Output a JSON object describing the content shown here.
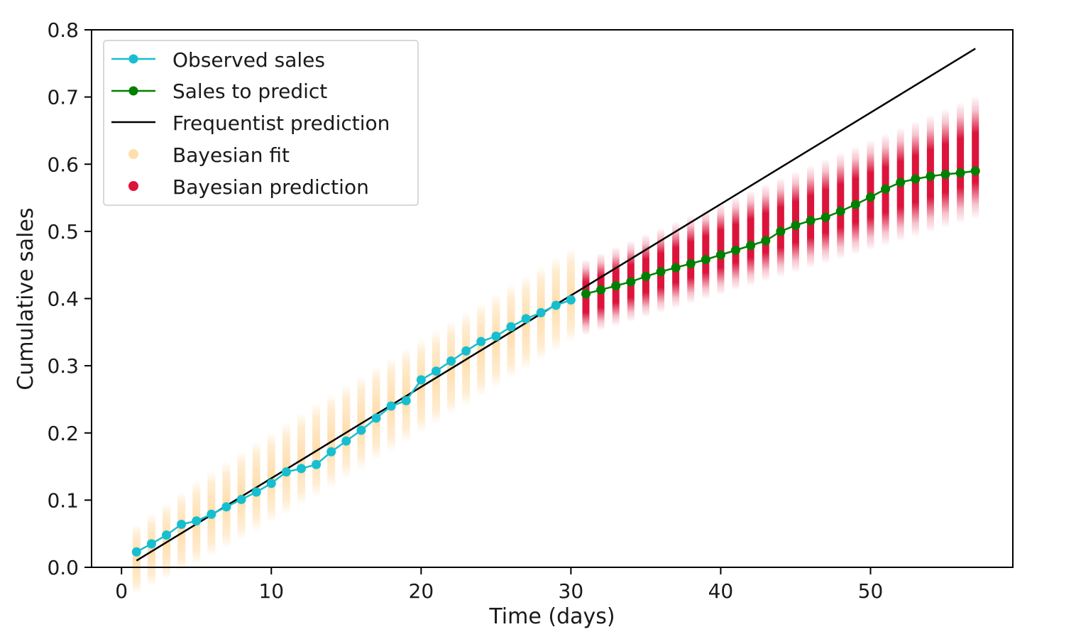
{
  "chart_data": {
    "type": "line",
    "title": "",
    "xlabel": "Time (days)",
    "ylabel": "Cumulative sales",
    "xlim": [
      -2,
      59.5
    ],
    "ylim": [
      0.0,
      0.8
    ],
    "x_ticks": [
      0,
      10,
      20,
      30,
      40,
      50
    ],
    "x_tick_labels": [
      "0",
      "10",
      "20",
      "30",
      "40",
      "50"
    ],
    "y_ticks": [
      0.0,
      0.1,
      0.2,
      0.3,
      0.4,
      0.5,
      0.6,
      0.7,
      0.8
    ],
    "y_tick_labels": [
      "0.0",
      "0.1",
      "0.2",
      "0.3",
      "0.4",
      "0.5",
      "0.6",
      "0.7",
      "0.8"
    ],
    "grid": false,
    "legend_position": "top-left",
    "colors": {
      "observed": "#17becf",
      "to_predict": "#008000",
      "frequentist": "#000000",
      "bayes_fit": "#ffdead",
      "bayes_pred": "#dc143c"
    },
    "series": [
      {
        "name": "Observed sales",
        "kind": "line-marker",
        "x": [
          1,
          2,
          3,
          4,
          5,
          6,
          7,
          8,
          9,
          10,
          11,
          12,
          13,
          14,
          15,
          16,
          17,
          18,
          19,
          20,
          21,
          22,
          23,
          24,
          25,
          26,
          27,
          28,
          29,
          30
        ],
        "y": [
          0.023,
          0.035,
          0.048,
          0.064,
          0.069,
          0.079,
          0.09,
          0.101,
          0.112,
          0.125,
          0.142,
          0.147,
          0.153,
          0.172,
          0.188,
          0.204,
          0.222,
          0.24,
          0.248,
          0.279,
          0.292,
          0.307,
          0.322,
          0.336,
          0.344,
          0.358,
          0.37,
          0.379,
          0.39,
          0.398
        ]
      },
      {
        "name": "Sales to predict",
        "kind": "line-marker",
        "x": [
          31,
          32,
          33,
          34,
          35,
          36,
          37,
          38,
          39,
          40,
          41,
          42,
          43,
          44,
          45,
          46,
          47,
          48,
          49,
          50,
          51,
          52,
          53,
          54,
          55,
          56,
          57
        ],
        "y": [
          0.407,
          0.413,
          0.419,
          0.425,
          0.433,
          0.44,
          0.446,
          0.452,
          0.458,
          0.465,
          0.472,
          0.479,
          0.486,
          0.5,
          0.509,
          0.516,
          0.521,
          0.53,
          0.54,
          0.551,
          0.563,
          0.573,
          0.578,
          0.582,
          0.585,
          0.587,
          0.59
        ]
      },
      {
        "name": "Frequentist prediction",
        "kind": "line",
        "x": [
          1,
          57
        ],
        "y": [
          0.01,
          0.772
        ]
      },
      {
        "name": "Bayesian fit",
        "kind": "interval",
        "x": [
          1,
          2,
          3,
          4,
          5,
          6,
          7,
          8,
          9,
          10,
          11,
          12,
          13,
          14,
          15,
          16,
          17,
          18,
          19,
          20,
          21,
          22,
          23,
          24,
          25,
          26,
          27,
          28,
          29,
          30
        ],
        "center": [
          0.012,
          0.026,
          0.039,
          0.053,
          0.066,
          0.08,
          0.093,
          0.107,
          0.12,
          0.134,
          0.147,
          0.161,
          0.175,
          0.188,
          0.202,
          0.215,
          0.229,
          0.242,
          0.256,
          0.27,
          0.283,
          0.297,
          0.31,
          0.324,
          0.337,
          0.351,
          0.364,
          0.378,
          0.392,
          0.405
        ],
        "half_width": [
          0.038,
          0.04,
          0.042,
          0.044,
          0.046,
          0.047,
          0.048,
          0.049,
          0.05,
          0.05,
          0.051,
          0.051,
          0.052,
          0.052,
          0.052,
          0.052,
          0.052,
          0.052,
          0.052,
          0.052,
          0.052,
          0.052,
          0.052,
          0.052,
          0.052,
          0.052,
          0.052,
          0.052,
          0.052,
          0.052
        ]
      },
      {
        "name": "Bayesian prediction",
        "kind": "interval",
        "x": [
          31,
          32,
          33,
          34,
          35,
          36,
          37,
          38,
          39,
          40,
          41,
          42,
          43,
          44,
          45,
          46,
          47,
          48,
          49,
          50,
          51,
          52,
          53,
          54,
          55,
          56,
          57
        ],
        "center": [
          0.402,
          0.41,
          0.418,
          0.426,
          0.434,
          0.442,
          0.45,
          0.458,
          0.466,
          0.474,
          0.482,
          0.49,
          0.498,
          0.506,
          0.514,
          0.522,
          0.53,
          0.538,
          0.546,
          0.554,
          0.562,
          0.57,
          0.578,
          0.586,
          0.594,
          0.602,
          0.61
        ],
        "half_width": [
          0.042,
          0.043,
          0.044,
          0.045,
          0.046,
          0.047,
          0.048,
          0.049,
          0.05,
          0.051,
          0.052,
          0.053,
          0.054,
          0.055,
          0.056,
          0.057,
          0.058,
          0.059,
          0.06,
          0.061,
          0.062,
          0.063,
          0.064,
          0.065,
          0.066,
          0.067,
          0.068
        ]
      }
    ]
  }
}
